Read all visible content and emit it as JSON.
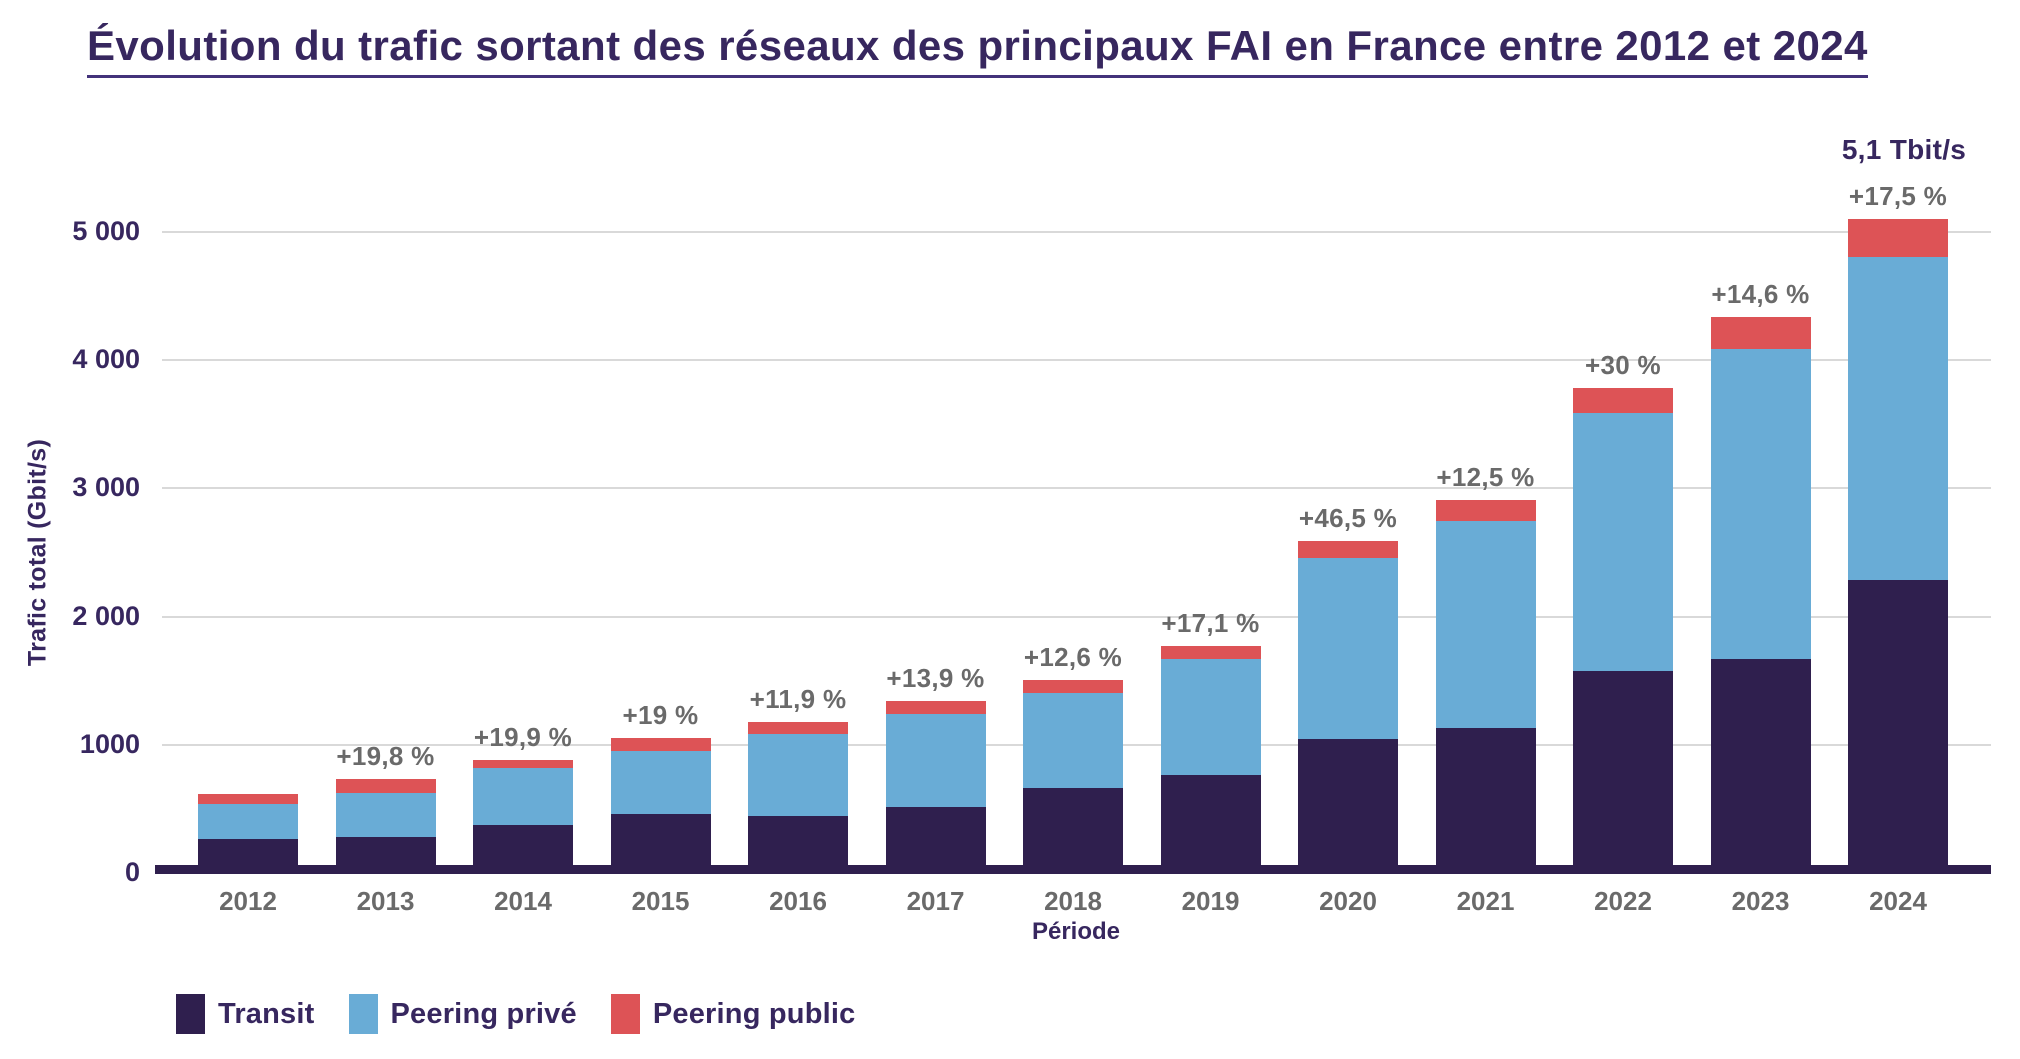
{
  "title": "Évolution du trafic sortant des réseaux des principaux FAI en France entre 2012 et 2024",
  "y_axis": {
    "label": "Trafic total (Gbit/s)",
    "ticks": [
      "5 000",
      "4 000",
      "3 000",
      "2 000",
      "1000",
      "0"
    ]
  },
  "x_axis": {
    "label": "Période"
  },
  "peak_annotation": "5,1 Tbit/s",
  "colors": {
    "transit": "#2f1f4e",
    "peering_prive": "#69acd6",
    "peering_public": "#dd5356",
    "axis_line": "#2f1f4e",
    "title_text": "#37275f",
    "gray_text": "#6a6a6a",
    "gridline": "#d9d9d9"
  },
  "legend": [
    {
      "label": "Transit",
      "color": "#2f1f4e"
    },
    {
      "label": "Peering privé",
      "color": "#69acd6"
    },
    {
      "label": "Peering public",
      "color": "#dd5356"
    }
  ],
  "chart_data": {
    "type": "bar",
    "stacked": true,
    "title": "Évolution du trafic sortant des réseaux des principaux FAI en France entre 2012 et 2024",
    "xlabel": "Période",
    "ylabel": "Trafic total (Gbit/s)",
    "ylim": [
      0,
      5500
    ],
    "yticks": [
      0,
      1000,
      2000,
      3000,
      4000,
      5000
    ],
    "grid": "horizontal",
    "legend_position": "bottom-left",
    "categories": [
      "2012",
      "2013",
      "2014",
      "2015",
      "2016",
      "2017",
      "2018",
      "2019",
      "2020",
      "2021",
      "2022",
      "2023",
      "2024"
    ],
    "series": [
      {
        "name": "Transit",
        "color": "#2f1f4e",
        "values": [
          262,
          278,
          374,
          464,
          441,
          511,
          661,
          767,
          1046,
          1130,
          1578,
          1668,
          2289
        ]
      },
      {
        "name": "Peering privé",
        "color": "#69acd6",
        "values": [
          273,
          348,
          442,
          491,
          640,
          731,
          746,
          905,
          1414,
          1615,
          2008,
          2420,
          2515
        ]
      },
      {
        "name": "Peering public",
        "color": "#dd5356",
        "values": [
          80,
          111,
          68,
          97,
          96,
          98,
          102,
          95,
          129,
          168,
          201,
          252,
          296
        ]
      }
    ],
    "totals": [
      615,
      737,
      884,
      1052,
      1177,
      1340,
      1509,
      1767,
      2589,
      2913,
      3787,
      4340,
      5100
    ],
    "growth_labels": [
      "",
      "+19,8 %",
      "+19,9 %",
      "+19 %",
      "+11,9 %",
      "+13,9 %",
      "+12,6 %",
      "+17,1 %",
      "+46,5 %",
      "+12,5 %",
      "+30 %",
      "+14,6 %",
      "+17,5 %"
    ],
    "peak_annotation": {
      "category": "2024",
      "text": "5,1 Tbit/s"
    }
  }
}
